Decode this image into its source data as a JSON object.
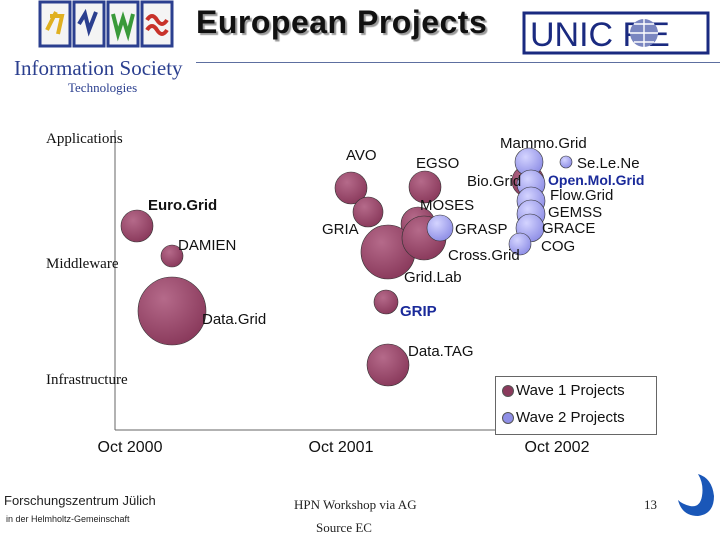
{
  "title": "European Projects",
  "logos": {
    "ist_line1": "Information Society",
    "ist_line2": "Technologies",
    "unicore_text": "UNIC   RE"
  },
  "footer": {
    "institution": "Forschungszentrum Jülich",
    "association": "in der Helmholtz-Gemeinschaft",
    "event": "HPN Workshop via AG",
    "source": "Source EC",
    "page_number": "13"
  },
  "chart_data": {
    "type": "scatter",
    "title": "",
    "xlabel": "",
    "ylabel": "",
    "x_ticks": [
      "Oct 2000",
      "Oct 2001",
      "Oct 2002"
    ],
    "y_categories": [
      "Applications",
      "Middleware",
      "Infrastructure"
    ],
    "legend_position": "bottom-right",
    "colors": {
      "wave1": "#8a3a5c",
      "wave2": "#8f8fe6"
    },
    "series": [
      {
        "name": "Wave 1 Projects",
        "color": "#8a3a5c"
      },
      {
        "name": "Wave 2 Projects",
        "color": "#8f8fe6"
      }
    ],
    "points": [
      {
        "label": "AVO",
        "wave": 1,
        "size": 1.0
      },
      {
        "label": "EGSO",
        "wave": 1,
        "size": 1.0
      },
      {
        "label": "Euro.Grid",
        "wave": 1,
        "size": 1.0
      },
      {
        "label": "DAMIEN",
        "wave": 1,
        "size": 0.8
      },
      {
        "label": "Data.Grid",
        "wave": 1,
        "size": 2.1
      },
      {
        "label": "GRIA",
        "wave": 1,
        "size": 1.0
      },
      {
        "label": "MOSES",
        "wave": 1,
        "size": 1.1
      },
      {
        "label": "Cross.Grid",
        "wave": 1,
        "size": 1.7
      },
      {
        "label": "Grid.Lab",
        "wave": 1,
        "size": 1.4
      },
      {
        "label": "GRIP",
        "wave": 1,
        "size": 0.9
      },
      {
        "label": "Data.TAG",
        "wave": 1,
        "size": 1.4
      },
      {
        "label": "Bio.Grid",
        "wave": 1,
        "size": 1.1
      },
      {
        "label": "GRASP",
        "wave": 2,
        "size": 0.9
      },
      {
        "label": "Mammo.Grid",
        "wave": 2,
        "size": 1.0
      },
      {
        "label": "Se.Le.Ne",
        "wave": 2,
        "size": 0.5
      },
      {
        "label": "Open.Mol.Grid",
        "wave": 2,
        "size": 1.0
      },
      {
        "label": "Flow.Grid",
        "wave": 2,
        "size": 1.0
      },
      {
        "label": "GEMSS",
        "wave": 2,
        "size": 1.0
      },
      {
        "label": "GRACE",
        "wave": 2,
        "size": 1.0
      },
      {
        "label": "COG",
        "wave": 2,
        "size": 0.9
      }
    ]
  }
}
